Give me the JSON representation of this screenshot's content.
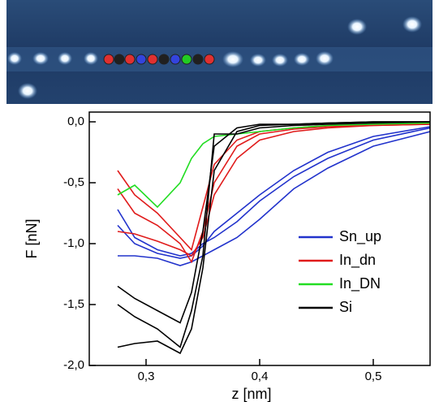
{
  "chart_data": {
    "type": "line",
    "xlabel": "z [nm]",
    "ylabel": "F [nN]",
    "xlim": [
      0.25,
      0.55
    ],
    "ylim": [
      -2.0,
      0.08
    ],
    "xticks": [
      {
        "value": 0.3,
        "label": "0,3"
      },
      {
        "value": 0.4,
        "label": "0,4"
      },
      {
        "value": 0.5,
        "label": "0,5"
      }
    ],
    "yticks": [
      {
        "value": 0.0,
        "label": "0,0"
      },
      {
        "value": -0.5,
        "label": "-0,5"
      },
      {
        "value": -1.0,
        "label": "-1,0"
      },
      {
        "value": -1.5,
        "label": "-1,5"
      },
      {
        "value": -2.0,
        "label": "-2,0"
      }
    ],
    "legend": "lower-right",
    "x": [
      0.275,
      0.29,
      0.31,
      0.33,
      0.34,
      0.35,
      0.36,
      0.38,
      0.4,
      0.43,
      0.46,
      0.5,
      0.55
    ],
    "series": [
      {
        "name": "Sn_up",
        "color": "#2233cc",
        "curves": [
          [
            -0.72,
            -0.95,
            -1.05,
            -1.1,
            -1.08,
            -1.0,
            -0.95,
            -0.82,
            -0.65,
            -0.45,
            -0.3,
            -0.15,
            -0.05
          ],
          [
            -1.1,
            -1.1,
            -1.12,
            -1.18,
            -1.15,
            -1.1,
            -1.05,
            -0.95,
            -0.8,
            -0.55,
            -0.38,
            -0.2,
            -0.08
          ],
          [
            -0.85,
            -1.0,
            -1.08,
            -1.12,
            -1.1,
            -1.02,
            -0.9,
            -0.75,
            -0.6,
            -0.4,
            -0.25,
            -0.12,
            -0.04
          ]
        ]
      },
      {
        "name": "In_dn",
        "color": "#e01b1b",
        "curves": [
          [
            -0.4,
            -0.6,
            -0.75,
            -0.95,
            -1.05,
            -0.7,
            -0.35,
            -0.15,
            -0.08,
            -0.05,
            -0.03,
            -0.02,
            -0.02
          ],
          [
            -0.55,
            -0.75,
            -0.85,
            -1.0,
            -1.15,
            -0.9,
            -0.5,
            -0.2,
            -0.1,
            -0.06,
            -0.04,
            -0.03,
            -0.02
          ],
          [
            -0.9,
            -0.92,
            -0.98,
            -1.05,
            -1.1,
            -0.95,
            -0.6,
            -0.3,
            -0.15,
            -0.08,
            -0.05,
            -0.03,
            -0.02
          ]
        ]
      },
      {
        "name": "In_DN",
        "color": "#22dd22",
        "curves": [
          [
            -0.6,
            -0.52,
            -0.7,
            -0.5,
            -0.3,
            -0.18,
            -0.12,
            -0.1,
            -0.08,
            -0.05,
            -0.03,
            -0.02,
            -0.01
          ]
        ]
      },
      {
        "name": "Si",
        "color": "#000000",
        "curves": [
          [
            -1.35,
            -1.45,
            -1.55,
            -1.65,
            -1.4,
            -0.9,
            -0.2,
            -0.05,
            -0.02,
            -0.02,
            -0.01,
            0,
            0
          ],
          [
            -1.85,
            -1.82,
            -1.8,
            -1.9,
            -1.7,
            -1.2,
            -0.4,
            -0.08,
            -0.03,
            -0.02,
            -0.01,
            0,
            0
          ],
          [
            -1.5,
            -1.6,
            -1.7,
            -1.85,
            -1.55,
            -1.1,
            -0.1,
            -0.1,
            -0.05,
            -0.03,
            -0.02,
            -0.01,
            0
          ]
        ]
      }
    ]
  }
}
